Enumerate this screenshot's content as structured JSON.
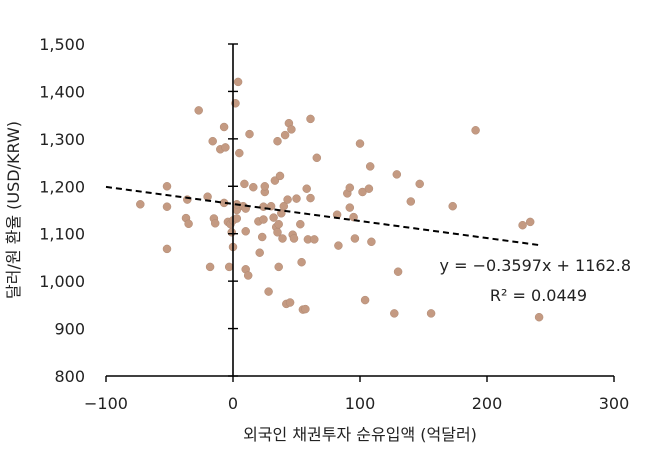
{
  "chart_data": {
    "type": "scatter",
    "title": "",
    "xlabel": "외국인 채권투자 순유입액 (억달러)",
    "ylabel": "달러/원 환율 (USD/KRW)",
    "xlim": [
      -100,
      300
    ],
    "ylim": [
      800,
      1500
    ],
    "xticks": [
      -100,
      0,
      100,
      200,
      300
    ],
    "xtick_labels": [
      "−100",
      "0",
      "100",
      "200",
      "300"
    ],
    "yticks": [
      800,
      900,
      1000,
      1100,
      1200,
      1300,
      1400,
      1500
    ],
    "ytick_labels": [
      "800",
      "900",
      "1,000",
      "1,100",
      "1,200",
      "1,300",
      "1,400",
      "1,500"
    ],
    "grid": false,
    "point_color": "#c49a82",
    "trendline": {
      "slope": -0.3597,
      "intercept": 1162.8,
      "x_range": [
        -100,
        243
      ],
      "style": "dashed",
      "color": "#000000",
      "equation": "y = −0.3597x + 1162.8",
      "r_squared": "R² = 0.0449"
    },
    "points": [
      [
        -73,
        1162
      ],
      [
        -52,
        1200
      ],
      [
        -52,
        1157
      ],
      [
        -52,
        1068
      ],
      [
        -37,
        1133
      ],
      [
        -36,
        1172
      ],
      [
        -35,
        1121
      ],
      [
        -27,
        1360
      ],
      [
        -20,
        1178
      ],
      [
        -18,
        1030
      ],
      [
        -16,
        1295
      ],
      [
        -15,
        1132
      ],
      [
        -14,
        1122
      ],
      [
        -10,
        1278
      ],
      [
        -7,
        1325
      ],
      [
        -7,
        1165
      ],
      [
        -6,
        1282
      ],
      [
        -4,
        1125
      ],
      [
        -3,
        1030
      ],
      [
        -2,
        1120
      ],
      [
        -1,
        1103
      ],
      [
        0,
        1072
      ],
      [
        0,
        1128
      ],
      [
        2,
        1375
      ],
      [
        3,
        1150
      ],
      [
        3,
        1132
      ],
      [
        3,
        1162
      ],
      [
        4,
        1420
      ],
      [
        5,
        1270
      ],
      [
        8,
        1158
      ],
      [
        9,
        1205
      ],
      [
        10,
        1153
      ],
      [
        10,
        1105
      ],
      [
        10,
        1025
      ],
      [
        12,
        1012
      ],
      [
        13,
        1310
      ],
      [
        16,
        1198
      ],
      [
        20,
        1126
      ],
      [
        21,
        1060
      ],
      [
        23,
        1093
      ],
      [
        24,
        1130
      ],
      [
        24,
        1157
      ],
      [
        25,
        1188
      ],
      [
        25,
        1200
      ],
      [
        28,
        978
      ],
      [
        30,
        1158
      ],
      [
        32,
        1134
      ],
      [
        33,
        1212
      ],
      [
        34,
        1114
      ],
      [
        35,
        1295
      ],
      [
        35,
        1103
      ],
      [
        36,
        1030
      ],
      [
        36,
        1120
      ],
      [
        37,
        1222
      ],
      [
        38,
        1143
      ],
      [
        39,
        1090
      ],
      [
        40,
        1158
      ],
      [
        41,
        1308
      ],
      [
        42,
        952
      ],
      [
        43,
        1172
      ],
      [
        44,
        1333
      ],
      [
        45,
        955
      ],
      [
        46,
        1320
      ],
      [
        47,
        1098
      ],
      [
        48,
        1090
      ],
      [
        50,
        1174
      ],
      [
        53,
        1120
      ],
      [
        54,
        1040
      ],
      [
        55,
        940
      ],
      [
        57,
        941
      ],
      [
        58,
        1195
      ],
      [
        59,
        1088
      ],
      [
        61,
        1175
      ],
      [
        61,
        1342
      ],
      [
        64,
        1088
      ],
      [
        66,
        1260
      ],
      [
        82,
        1140
      ],
      [
        83,
        1075
      ],
      [
        90,
        1185
      ],
      [
        92,
        1197
      ],
      [
        92,
        1155
      ],
      [
        95,
        1135
      ],
      [
        96,
        1090
      ],
      [
        100,
        1290
      ],
      [
        102,
        1188
      ],
      [
        104,
        960
      ],
      [
        107,
        1195
      ],
      [
        108,
        1242
      ],
      [
        109,
        1083
      ],
      [
        127,
        932
      ],
      [
        129,
        1225
      ],
      [
        130,
        1020
      ],
      [
        140,
        1168
      ],
      [
        147,
        1205
      ],
      [
        156,
        932
      ],
      [
        173,
        1158
      ],
      [
        191,
        1318
      ],
      [
        228,
        1118
      ],
      [
        234,
        1125
      ],
      [
        241,
        924
      ]
    ]
  }
}
